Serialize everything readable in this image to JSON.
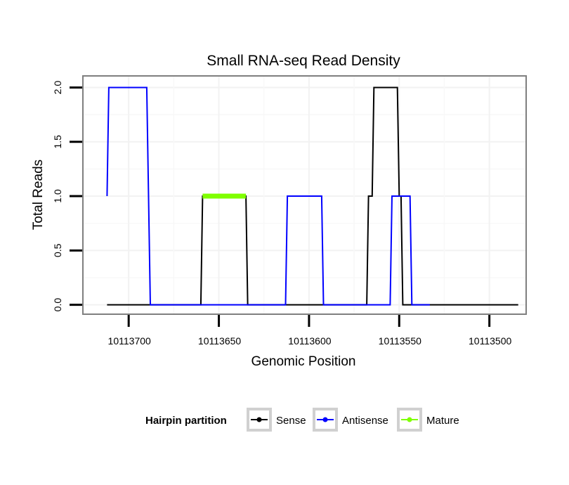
{
  "chart_data": {
    "type": "line",
    "title": "Small RNA-seq Read Density",
    "xlabel": "Genomic Position",
    "ylabel": "Total Reads",
    "x_reversed": true,
    "xlim": [
      10113725,
      10113480
    ],
    "ylim": [
      -0.08,
      2.1
    ],
    "x_ticks": [
      10113700,
      10113650,
      10113600,
      10113550,
      10113500
    ],
    "x_tick_labels": [
      "10113700",
      "10113650",
      "10113600",
      "10113550",
      "10113500"
    ],
    "y_ticks": [
      0,
      0.5,
      1,
      1.5,
      2
    ],
    "y_tick_labels": [
      "0.0",
      "0.5",
      "1.0",
      "1.5",
      "2.0"
    ],
    "grid": true,
    "legend": {
      "title": "Hairpin partition",
      "position": "bottom",
      "entries": [
        {
          "label": "Sense",
          "color": "#000000"
        },
        {
          "label": "Antisense",
          "color": "#0000ff"
        },
        {
          "label": "Mature",
          "color": "#7fff00"
        }
      ]
    },
    "series": [
      {
        "name": "Sense",
        "color": "#000000",
        "x": [
          10113712,
          10113660,
          10113659,
          10113635,
          10113634,
          10113568,
          10113567,
          10113565,
          10113564,
          10113551,
          10113550,
          10113549,
          10113548,
          10113546,
          10113545,
          10113484
        ],
        "y": [
          0,
          0,
          1,
          1,
          0,
          0,
          1,
          1,
          2,
          2,
          1,
          1,
          0,
          0,
          0,
          0
        ]
      },
      {
        "name": "Antisense",
        "color": "#0000ff",
        "x": [
          10113712,
          10113711,
          10113690,
          10113688,
          10113661,
          10113613,
          10113612,
          10113593,
          10113592,
          10113555,
          10113554,
          10113544,
          10113543,
          10113540,
          10113533
        ],
        "y": [
          1,
          2,
          2,
          0,
          0,
          0,
          1,
          1,
          0,
          0,
          1,
          1,
          0,
          0,
          0
        ]
      },
      {
        "name": "Mature",
        "color": "#7fff00",
        "x": [
          10113659,
          10113635
        ],
        "y": [
          1,
          1
        ]
      }
    ]
  }
}
